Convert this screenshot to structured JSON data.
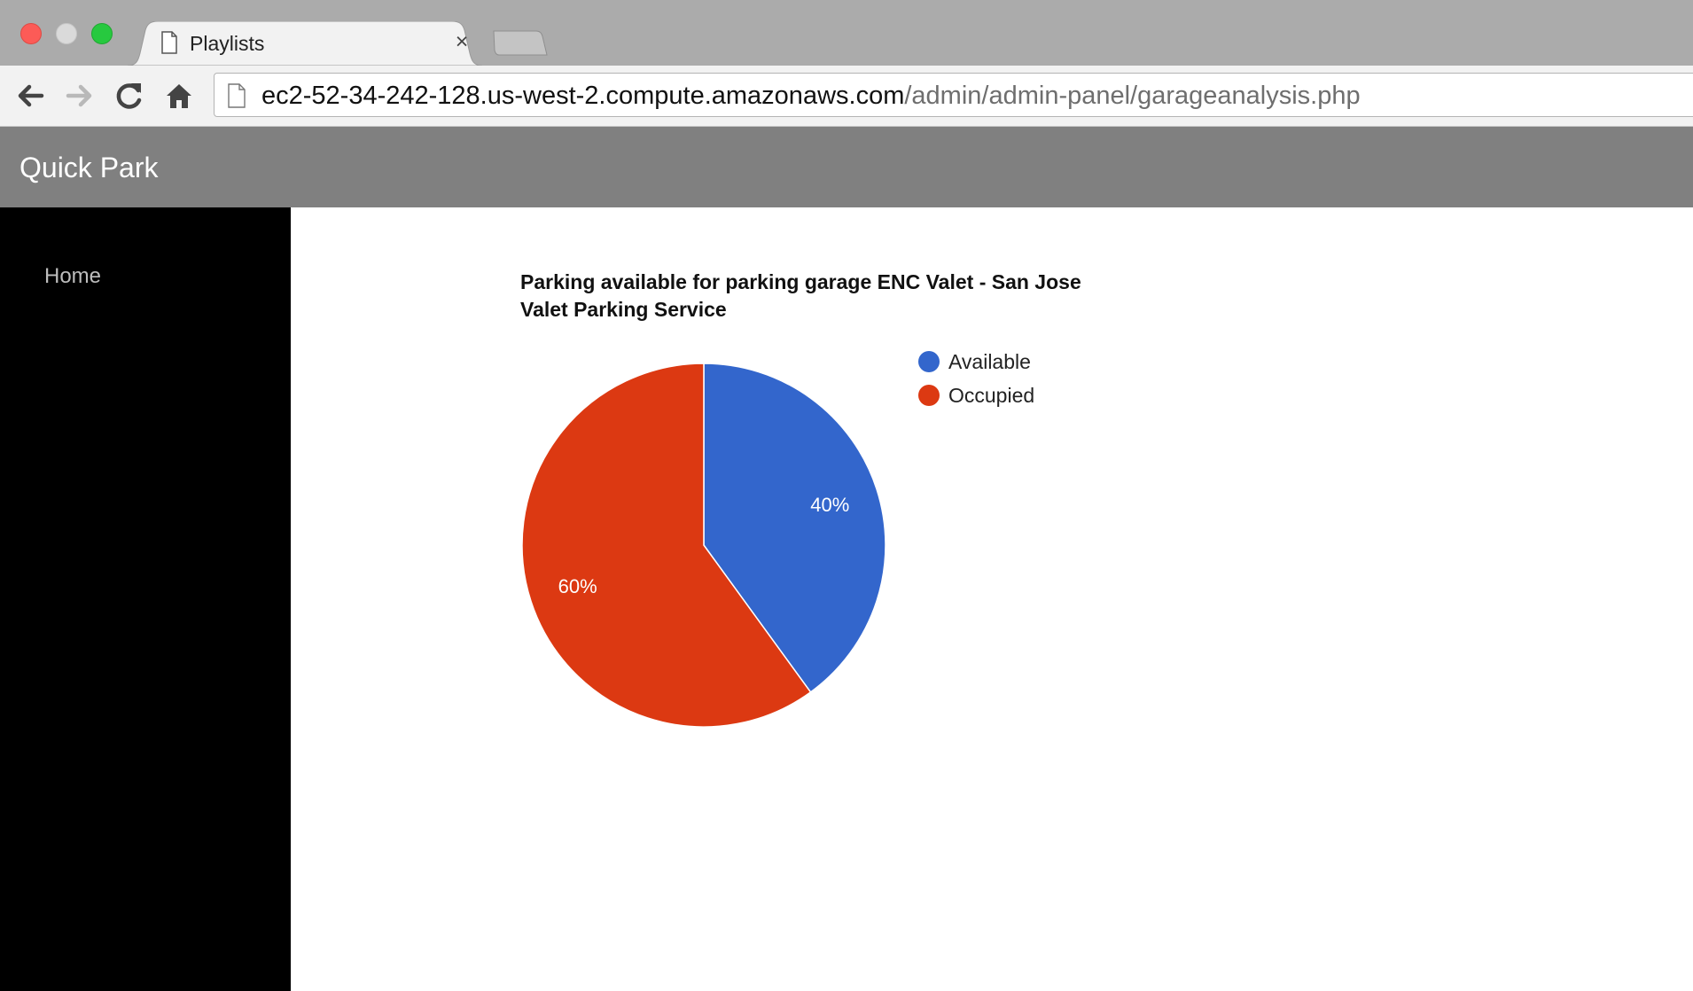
{
  "browser": {
    "tab_title": "Playlists",
    "tab_close_glyph": "×",
    "url_host": "ec2-52-34-242-128.us-west-2.compute.amazonaws.com",
    "url_path": "/admin/admin-panel/garageanalysis.php",
    "icons": [
      "document-icon",
      "close-icon",
      "back-arrow-icon",
      "forward-arrow-icon",
      "reload-icon",
      "home-icon",
      "page-icon"
    ]
  },
  "app": {
    "brand": "Quick Park",
    "nav": [
      {
        "label": "Home"
      }
    ]
  },
  "chart_title_line1": "Parking available for parking garage ENC Valet - San Jose",
  "chart_title_line2": "Valet Parking Service",
  "chart_data": {
    "type": "pie",
    "title": "Parking available for parking garage ENC Valet - San Jose Valet Parking Service",
    "categories": [
      "Available",
      "Occupied"
    ],
    "values": [
      40,
      60
    ],
    "labels": [
      "40%",
      "60%"
    ],
    "colors": [
      "#3366cc",
      "#dc3912"
    ],
    "legend_position": "right"
  }
}
